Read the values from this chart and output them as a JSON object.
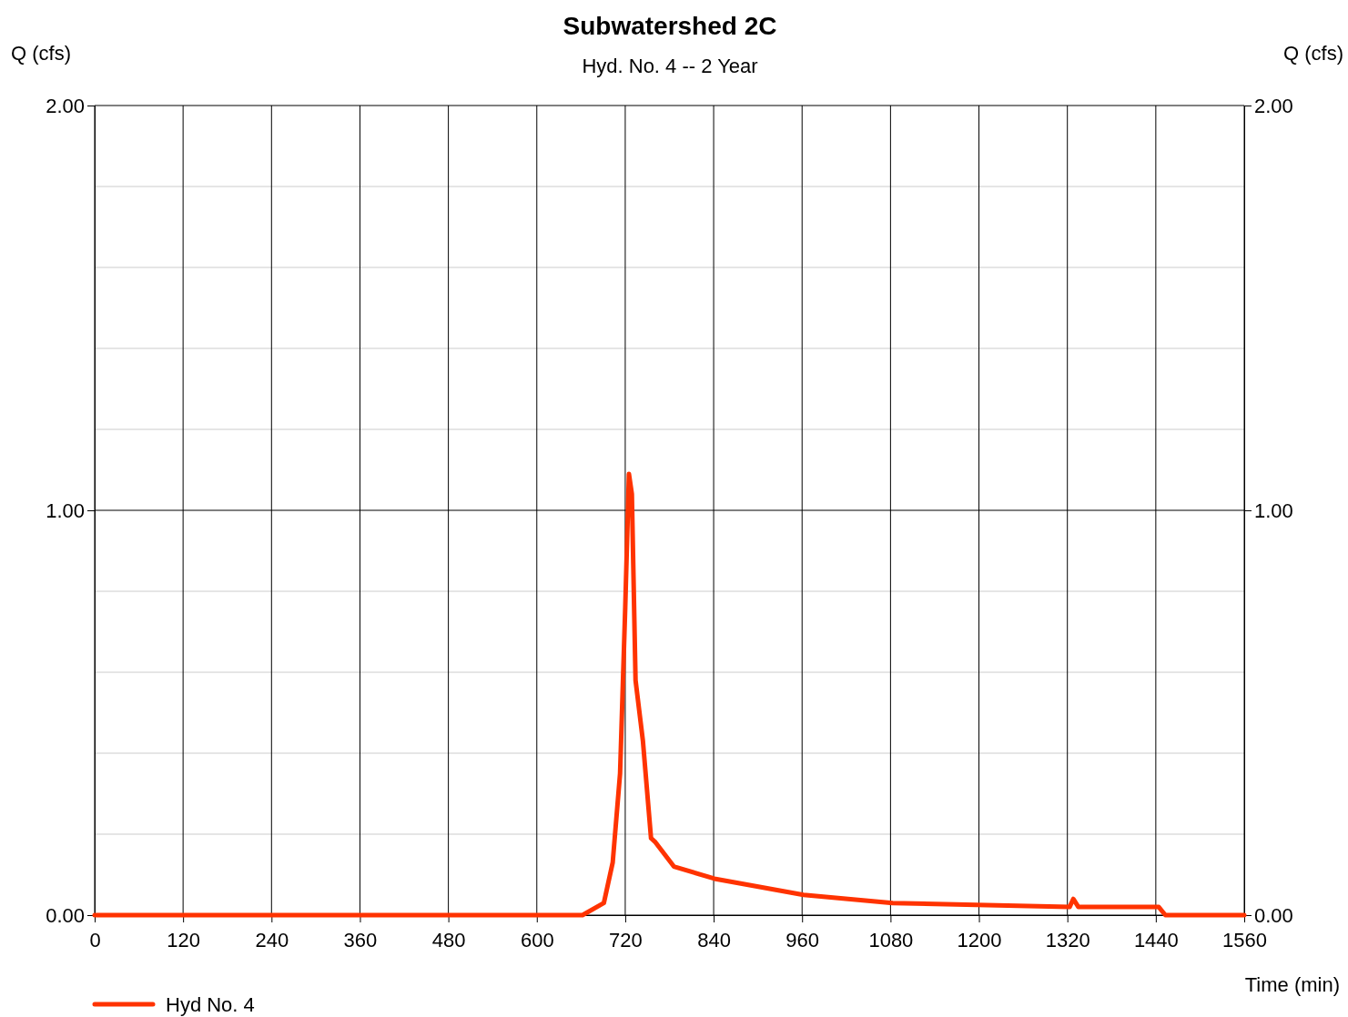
{
  "chart_data": {
    "type": "line",
    "title": "Subwatershed 2C",
    "subtitle": "Hyd. No. 4 -- 2 Year",
    "xlabel": "Time (min)",
    "ylabel": "Q (cfs)",
    "y2label": "Q (cfs)",
    "x": [
      0,
      662,
      691,
      703,
      713,
      720,
      725,
      729,
      734,
      744,
      755,
      761,
      786,
      841,
      962,
      1083,
      1323,
      1328,
      1335,
      1444,
      1453,
      1560
    ],
    "series": [
      {
        "name": "Hyd No. 4",
        "color": "#ff3300",
        "values": [
          0,
          0,
          0.03,
          0.13,
          0.35,
          0.76,
          1.09,
          1.04,
          0.58,
          0.43,
          0.19,
          0.18,
          0.12,
          0.09,
          0.05,
          0.03,
          0.02,
          0.04,
          0.02,
          0.02,
          0,
          0
        ]
      }
    ],
    "xlim": [
      0,
      1560
    ],
    "xticks": [
      0,
      120,
      240,
      360,
      480,
      600,
      720,
      840,
      960,
      1080,
      1200,
      1320,
      1440,
      1560
    ],
    "ylim": [
      0,
      2
    ],
    "yticks": [
      {
        "value": 0,
        "label": "0.00"
      },
      {
        "value": 0.2,
        "label": null
      },
      {
        "value": 0.4,
        "label": null
      },
      {
        "value": 0.6,
        "label": null
      },
      {
        "value": 0.8,
        "label": null
      },
      {
        "value": 1,
        "label": "1.00"
      },
      {
        "value": 1.2,
        "label": null
      },
      {
        "value": 1.4,
        "label": null
      },
      {
        "value": 1.6,
        "label": null
      },
      {
        "value": 1.8,
        "label": null
      },
      {
        "value": 2,
        "label": "2.00"
      }
    ],
    "y2lim": [
      0,
      2
    ],
    "y2ticks": [
      {
        "value": 0,
        "label": "0.00"
      },
      {
        "value": 1,
        "label": "1.00"
      },
      {
        "value": 2,
        "label": "2.00"
      }
    ],
    "grid": true,
    "legend": "bottom left",
    "marker": "none",
    "line_style": "solid"
  }
}
